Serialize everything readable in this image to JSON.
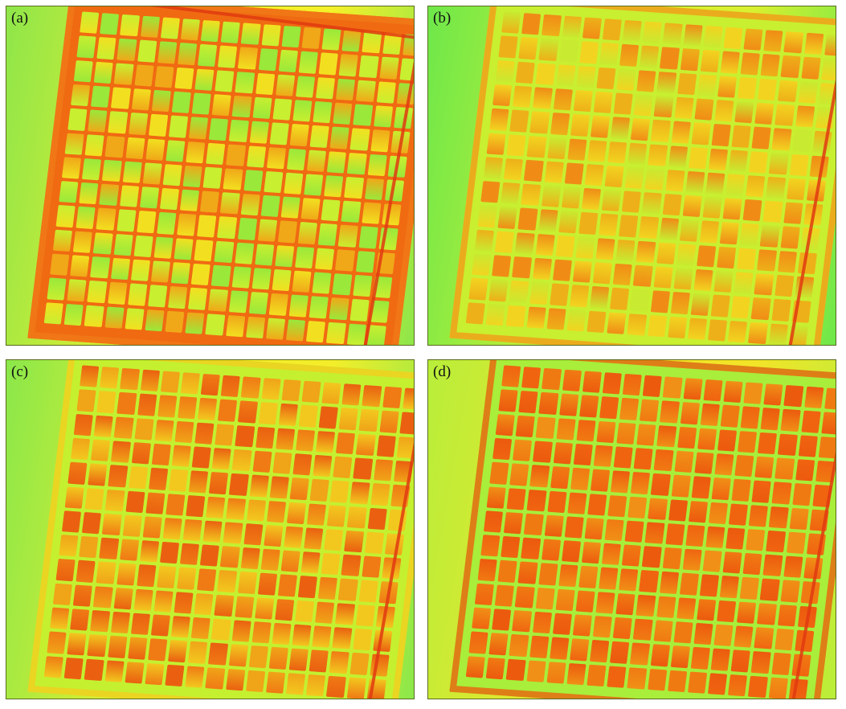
{
  "figure": {
    "panels": [
      {
        "id": "a",
        "label": "(a)",
        "bg_from": "#8ee64a",
        "bg_to": "#f4f02a",
        "cell_colors": [
          "#9ae83a",
          "#c8ef30",
          "#f2e020",
          "#f0a818"
        ],
        "rim": "#f07818",
        "gutter": "#f06a12"
      },
      {
        "id": "b",
        "label": "(b)",
        "bg_from": "#6de84a",
        "bg_to": "#d8f030",
        "cell_colors": [
          "#f2d420",
          "#eeb018",
          "#c8ea30",
          "#f08c16"
        ],
        "rim": "#f0a01a",
        "gutter": "#c8ef30"
      },
      {
        "id": "c",
        "label": "(c)",
        "bg_from": "#8ae84a",
        "bg_to": "#f4ee2a",
        "cell_colors": [
          "#f07a14",
          "#f0a418",
          "#f2c81e",
          "#ea6010"
        ],
        "rim": "#f0d020",
        "gutter": "#c4f030"
      },
      {
        "id": "d",
        "label": "(d)",
        "bg_from": "#b8ee3a",
        "bg_to": "#f4e428",
        "cell_colors": [
          "#f06410",
          "#f07a12",
          "#ec5a0e",
          "#f09016"
        ],
        "rim": "#e86a12",
        "gutter": "#a8ee3a"
      }
    ]
  }
}
